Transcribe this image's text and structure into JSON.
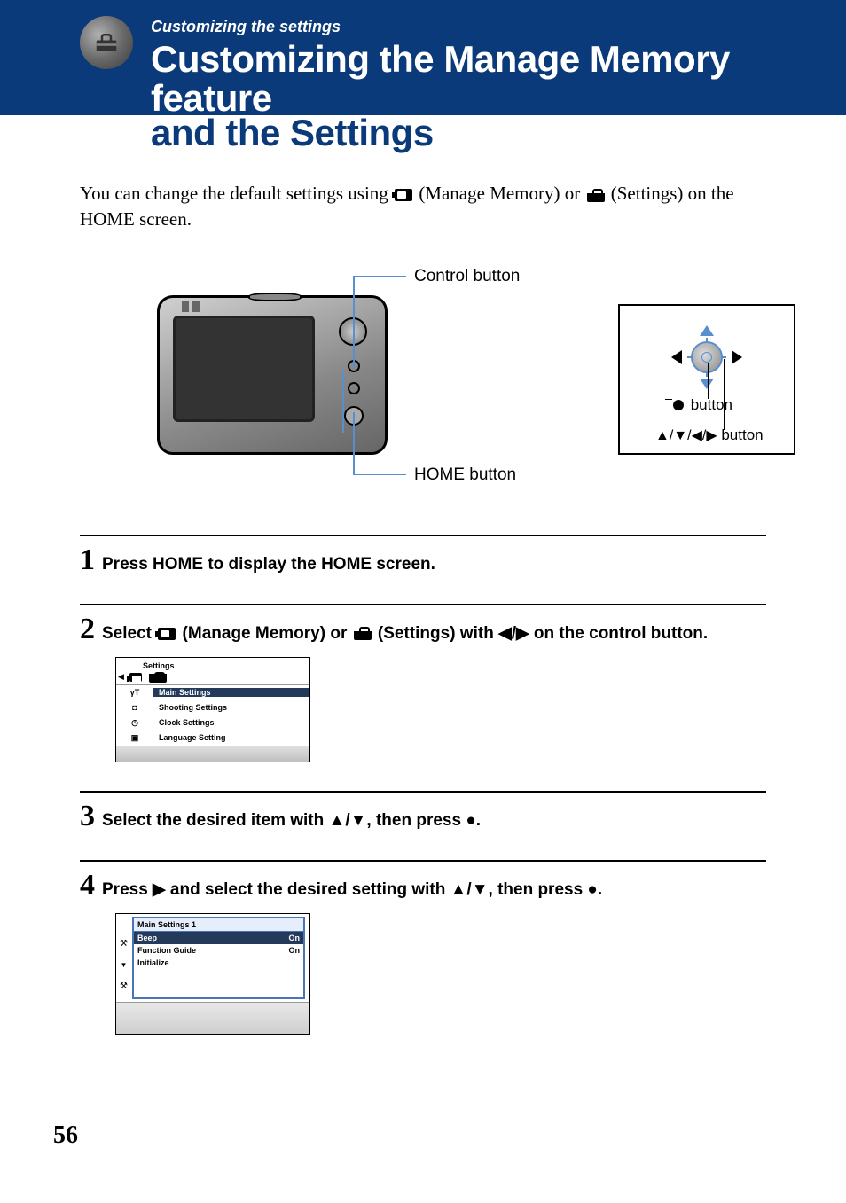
{
  "header": {
    "breadcrumb": "Customizing the settings",
    "title_line1": "Customizing the Manage Memory feature",
    "title_line2": "and the Settings"
  },
  "intro": {
    "prefix": "You can change the default settings using ",
    "mid1": " (Manage Memory) or ",
    "mid2": " (Settings) on the HOME screen."
  },
  "diagram": {
    "control_button_label": "Control button",
    "center_button_label": " button",
    "dpad_button_label_prefix": "▲/▼/◀/▶",
    "dpad_button_label_suffix": " button",
    "home_button_label": "HOME button"
  },
  "steps": {
    "s1": {
      "num": "1",
      "text": "Press HOME to display the HOME screen."
    },
    "s2": {
      "num": "2",
      "prefix": "Select ",
      "mid1": " (Manage Memory) or ",
      "mid2": " (Settings) with ◀/▶ on the control button."
    },
    "s3": {
      "num": "3",
      "text": "Select the desired item with ▲/▼, then press ●."
    },
    "s4": {
      "num": "4",
      "text": "Press ▶ and select the desired setting with ▲/▼, then press ●."
    }
  },
  "menu1": {
    "header": "Settings",
    "items": [
      {
        "icon": "γT",
        "label": "Main Settings",
        "selected": true
      },
      {
        "icon": "camera",
        "label": "Shooting Settings",
        "selected": false
      },
      {
        "icon": "clock",
        "label": "Clock Settings",
        "selected": false
      },
      {
        "icon": "lang",
        "label": "Language Setting",
        "selected": false
      }
    ]
  },
  "menu2": {
    "title": "Main Settings 1",
    "rows": [
      {
        "label": "Beep",
        "value": "On",
        "selected": true
      },
      {
        "label": "Function Guide",
        "value": "On",
        "selected": false
      },
      {
        "label": "Initialize",
        "value": "",
        "selected": false
      }
    ]
  },
  "page_number": "56",
  "colors": {
    "header_bg": "#0a3a7a",
    "accent_blue": "#5a8fcf",
    "menu_selected_bg": "#243a5a"
  }
}
